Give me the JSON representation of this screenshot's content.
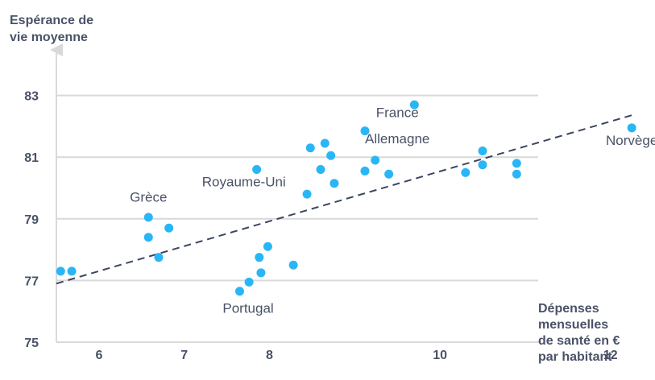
{
  "chart_data": {
    "type": "scatter",
    "ylabel": [
      "Espérance de",
      "vie moyenne"
    ],
    "xlabel": [
      "Dépenses",
      "mensuelles",
      "de santé en €",
      "par habitant"
    ],
    "x_ticks": [
      6,
      7,
      8,
      10,
      12
    ],
    "y_ticks": [
      75,
      77,
      79,
      81,
      83
    ],
    "xlim": [
      5.5,
      12.8
    ],
    "ylim": [
      75,
      84
    ],
    "grid": true,
    "colors": {
      "point": "#29b6f6",
      "grid": "#d9d9d9",
      "axis": "#d9d9d9",
      "trend": "#3b4660",
      "text": "#4a5268"
    },
    "points": [
      {
        "x": 5.55,
        "y": 77.3
      },
      {
        "x": 5.68,
        "y": 77.3
      },
      {
        "x": 6.58,
        "y": 79.05
      },
      {
        "x": 6.58,
        "y": 78.4
      },
      {
        "x": 6.82,
        "y": 78.7
      },
      {
        "x": 6.7,
        "y": 77.75
      },
      {
        "x": 7.65,
        "y": 76.65
      },
      {
        "x": 7.76,
        "y": 76.95
      },
      {
        "x": 7.88,
        "y": 77.75
      },
      {
        "x": 7.9,
        "y": 77.25
      },
      {
        "x": 7.98,
        "y": 78.1
      },
      {
        "x": 8.28,
        "y": 77.5
      },
      {
        "x": 7.85,
        "y": 80.6
      },
      {
        "x": 8.44,
        "y": 79.8
      },
      {
        "x": 8.48,
        "y": 81.3
      },
      {
        "x": 8.6,
        "y": 80.6
      },
      {
        "x": 8.65,
        "y": 81.45
      },
      {
        "x": 8.72,
        "y": 81.05
      },
      {
        "x": 8.76,
        "y": 80.15
      },
      {
        "x": 9.12,
        "y": 81.85
      },
      {
        "x": 9.12,
        "y": 80.55
      },
      {
        "x": 9.24,
        "y": 80.9
      },
      {
        "x": 9.4,
        "y": 80.45
      },
      {
        "x": 9.7,
        "y": 82.7
      },
      {
        "x": 10.3,
        "y": 80.5
      },
      {
        "x": 10.5,
        "y": 81.2
      },
      {
        "x": 10.5,
        "y": 80.75
      },
      {
        "x": 10.9,
        "y": 80.8
      },
      {
        "x": 10.9,
        "y": 80.45
      },
      {
        "x": 12.25,
        "y": 81.95
      }
    ],
    "annotations": [
      {
        "text": "France",
        "x": 9.5,
        "y": 82.3
      },
      {
        "text": "Allemagne",
        "x": 9.5,
        "y": 81.45
      },
      {
        "text": "Norvège",
        "x": 12.25,
        "y": 81.4
      },
      {
        "text": "Royaume-Uni",
        "x": 7.7,
        "y": 80.05
      },
      {
        "text": "Grèce",
        "x": 6.58,
        "y": 79.55
      },
      {
        "text": "Portugal",
        "x": 7.75,
        "y": 75.95
      }
    ],
    "trend": {
      "x1": 5.5,
      "y1": 76.9,
      "x2": 12.3,
      "y2": 82.4
    }
  }
}
